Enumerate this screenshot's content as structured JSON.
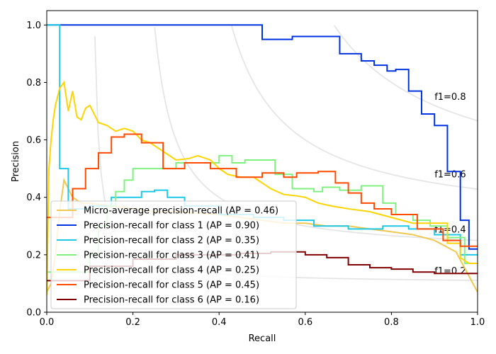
{
  "chart_data": {
    "type": "line",
    "title": "",
    "xlabel": "Recall",
    "ylabel": "Precision",
    "xlim": [
      0.0,
      1.0
    ],
    "ylim": [
      0.0,
      1.05
    ],
    "xticks": [
      "0.0",
      "0.2",
      "0.4",
      "0.6",
      "0.8",
      "1.0"
    ],
    "yticks": [
      "0.0",
      "0.2",
      "0.4",
      "0.6",
      "0.8",
      "1.0"
    ],
    "grid": false,
    "legend_position": "lower-left",
    "iso_f1": [
      {
        "f1": 0.2,
        "label": "f1=0.2"
      },
      {
        "f1": 0.4,
        "label": "f1=0.4"
      },
      {
        "f1": 0.6,
        "label": "f1=0.6"
      },
      {
        "f1": 0.8,
        "label": "f1=0.8"
      }
    ],
    "series": [
      {
        "name": "Micro-average precision-recall (AP = 0.46)",
        "color": "#f0c850",
        "points": [
          [
            0.0,
            0.07
          ],
          [
            0.01,
            0.1
          ],
          [
            0.02,
            0.2
          ],
          [
            0.03,
            0.35
          ],
          [
            0.04,
            0.46
          ],
          [
            0.06,
            0.4
          ],
          [
            0.08,
            0.38
          ],
          [
            0.1,
            0.38
          ],
          [
            0.15,
            0.37
          ],
          [
            0.2,
            0.36
          ],
          [
            0.25,
            0.35
          ],
          [
            0.3,
            0.35
          ],
          [
            0.35,
            0.345
          ],
          [
            0.4,
            0.34
          ],
          [
            0.45,
            0.33
          ],
          [
            0.5,
            0.32
          ],
          [
            0.55,
            0.31
          ],
          [
            0.6,
            0.31
          ],
          [
            0.65,
            0.3
          ],
          [
            0.7,
            0.3
          ],
          [
            0.75,
            0.29
          ],
          [
            0.8,
            0.28
          ],
          [
            0.85,
            0.27
          ],
          [
            0.9,
            0.25
          ],
          [
            0.95,
            0.21
          ],
          [
            1.0,
            0.07
          ]
        ]
      },
      {
        "name": "Precision-recall for class 1 (AP = 0.90)",
        "color": "#0033e0",
        "points": [
          [
            0.0,
            1.0
          ],
          [
            0.5,
            1.0
          ],
          [
            0.5,
            0.95
          ],
          [
            0.57,
            0.95
          ],
          [
            0.57,
            0.96
          ],
          [
            0.68,
            0.96
          ],
          [
            0.68,
            0.9
          ],
          [
            0.73,
            0.9
          ],
          [
            0.73,
            0.875
          ],
          [
            0.76,
            0.875
          ],
          [
            0.76,
            0.86
          ],
          [
            0.79,
            0.86
          ],
          [
            0.79,
            0.84
          ],
          [
            0.81,
            0.84
          ],
          [
            0.81,
            0.845
          ],
          [
            0.84,
            0.845
          ],
          [
            0.84,
            0.77
          ],
          [
            0.87,
            0.77
          ],
          [
            0.87,
            0.69
          ],
          [
            0.9,
            0.69
          ],
          [
            0.9,
            0.65
          ],
          [
            0.93,
            0.65
          ],
          [
            0.93,
            0.49
          ],
          [
            0.96,
            0.49
          ],
          [
            0.96,
            0.32
          ],
          [
            0.98,
            0.32
          ],
          [
            0.98,
            0.22
          ],
          [
            1.0,
            0.22
          ]
        ]
      },
      {
        "name": "Precision-recall for class 2 (AP = 0.35)",
        "color": "#1ec8e6",
        "points": [
          [
            0.0,
            1.0
          ],
          [
            0.03,
            1.0
          ],
          [
            0.03,
            0.5
          ],
          [
            0.05,
            0.5
          ],
          [
            0.05,
            0.36
          ],
          [
            0.1,
            0.36
          ],
          [
            0.1,
            0.37
          ],
          [
            0.15,
            0.37
          ],
          [
            0.15,
            0.4
          ],
          [
            0.22,
            0.4
          ],
          [
            0.22,
            0.42
          ],
          [
            0.25,
            0.42
          ],
          [
            0.25,
            0.425
          ],
          [
            0.28,
            0.425
          ],
          [
            0.28,
            0.4
          ],
          [
            0.32,
            0.4
          ],
          [
            0.32,
            0.37
          ],
          [
            0.4,
            0.37
          ],
          [
            0.4,
            0.34
          ],
          [
            0.48,
            0.34
          ],
          [
            0.48,
            0.33
          ],
          [
            0.55,
            0.33
          ],
          [
            0.55,
            0.32
          ],
          [
            0.62,
            0.32
          ],
          [
            0.62,
            0.3
          ],
          [
            0.7,
            0.3
          ],
          [
            0.7,
            0.29
          ],
          [
            0.78,
            0.29
          ],
          [
            0.78,
            0.3
          ],
          [
            0.84,
            0.3
          ],
          [
            0.84,
            0.29
          ],
          [
            0.9,
            0.29
          ],
          [
            0.9,
            0.27
          ],
          [
            0.96,
            0.27
          ],
          [
            0.96,
            0.2
          ],
          [
            1.0,
            0.2
          ]
        ]
      },
      {
        "name": "Precision-recall for class 3 (AP = 0.41)",
        "color": "#80f080",
        "points": [
          [
            0.0,
            0.14
          ],
          [
            0.1,
            0.14
          ],
          [
            0.1,
            0.2
          ],
          [
            0.12,
            0.2
          ],
          [
            0.12,
            0.3
          ],
          [
            0.14,
            0.3
          ],
          [
            0.14,
            0.37
          ],
          [
            0.16,
            0.37
          ],
          [
            0.16,
            0.42
          ],
          [
            0.18,
            0.42
          ],
          [
            0.18,
            0.46
          ],
          [
            0.2,
            0.46
          ],
          [
            0.2,
            0.5
          ],
          [
            0.3,
            0.5
          ],
          [
            0.3,
            0.52
          ],
          [
            0.4,
            0.52
          ],
          [
            0.4,
            0.545
          ],
          [
            0.43,
            0.545
          ],
          [
            0.43,
            0.52
          ],
          [
            0.46,
            0.52
          ],
          [
            0.46,
            0.53
          ],
          [
            0.53,
            0.53
          ],
          [
            0.53,
            0.48
          ],
          [
            0.57,
            0.48
          ],
          [
            0.57,
            0.43
          ],
          [
            0.62,
            0.43
          ],
          [
            0.62,
            0.42
          ],
          [
            0.64,
            0.42
          ],
          [
            0.64,
            0.435
          ],
          [
            0.68,
            0.435
          ],
          [
            0.68,
            0.425
          ],
          [
            0.73,
            0.425
          ],
          [
            0.73,
            0.44
          ],
          [
            0.78,
            0.44
          ],
          [
            0.78,
            0.38
          ],
          [
            0.81,
            0.38
          ],
          [
            0.81,
            0.34
          ],
          [
            0.85,
            0.34
          ],
          [
            0.85,
            0.32
          ],
          [
            0.89,
            0.32
          ],
          [
            0.89,
            0.3
          ],
          [
            0.93,
            0.3
          ],
          [
            0.93,
            0.26
          ],
          [
            0.97,
            0.26
          ],
          [
            0.97,
            0.17
          ],
          [
            1.0,
            0.17
          ]
        ]
      },
      {
        "name": "Precision-recall for class 4 (AP = 0.25)",
        "color": "#ffd400",
        "points": [
          [
            0.0,
            0.06
          ],
          [
            0.005,
            0.5
          ],
          [
            0.01,
            0.6
          ],
          [
            0.015,
            0.67
          ],
          [
            0.02,
            0.72
          ],
          [
            0.03,
            0.78
          ],
          [
            0.04,
            0.8
          ],
          [
            0.05,
            0.7
          ],
          [
            0.06,
            0.77
          ],
          [
            0.07,
            0.68
          ],
          [
            0.08,
            0.67
          ],
          [
            0.09,
            0.71
          ],
          [
            0.1,
            0.72
          ],
          [
            0.12,
            0.66
          ],
          [
            0.14,
            0.65
          ],
          [
            0.16,
            0.63
          ],
          [
            0.18,
            0.64
          ],
          [
            0.2,
            0.63
          ],
          [
            0.22,
            0.6
          ],
          [
            0.24,
            0.59
          ],
          [
            0.26,
            0.57
          ],
          [
            0.28,
            0.55
          ],
          [
            0.3,
            0.53
          ],
          [
            0.33,
            0.535
          ],
          [
            0.35,
            0.545
          ],
          [
            0.38,
            0.53
          ],
          [
            0.4,
            0.5
          ],
          [
            0.42,
            0.48
          ],
          [
            0.45,
            0.47
          ],
          [
            0.48,
            0.47
          ],
          [
            0.5,
            0.45
          ],
          [
            0.52,
            0.43
          ],
          [
            0.55,
            0.41
          ],
          [
            0.58,
            0.405
          ],
          [
            0.6,
            0.4
          ],
          [
            0.63,
            0.38
          ],
          [
            0.66,
            0.37
          ],
          [
            0.7,
            0.36
          ],
          [
            0.75,
            0.35
          ],
          [
            0.8,
            0.33
          ],
          [
            0.85,
            0.31
          ],
          [
            0.9,
            0.31
          ],
          [
            0.93,
            0.31
          ],
          [
            0.93,
            0.24
          ],
          [
            0.96,
            0.24
          ],
          [
            0.96,
            0.19
          ],
          [
            0.98,
            0.17
          ],
          [
            1.0,
            0.17
          ]
        ]
      },
      {
        "name": "Precision-recall for class 5 (AP = 0.45)",
        "color": "#ff4a00",
        "points": [
          [
            0.0,
            0.33
          ],
          [
            0.06,
            0.33
          ],
          [
            0.06,
            0.43
          ],
          [
            0.09,
            0.43
          ],
          [
            0.09,
            0.5
          ],
          [
            0.12,
            0.5
          ],
          [
            0.12,
            0.555
          ],
          [
            0.15,
            0.555
          ],
          [
            0.15,
            0.61
          ],
          [
            0.18,
            0.61
          ],
          [
            0.18,
            0.62
          ],
          [
            0.22,
            0.62
          ],
          [
            0.22,
            0.59
          ],
          [
            0.27,
            0.59
          ],
          [
            0.27,
            0.5
          ],
          [
            0.32,
            0.5
          ],
          [
            0.32,
            0.52
          ],
          [
            0.38,
            0.52
          ],
          [
            0.38,
            0.5
          ],
          [
            0.44,
            0.5
          ],
          [
            0.44,
            0.47
          ],
          [
            0.5,
            0.47
          ],
          [
            0.5,
            0.485
          ],
          [
            0.55,
            0.485
          ],
          [
            0.55,
            0.47
          ],
          [
            0.58,
            0.47
          ],
          [
            0.58,
            0.485
          ],
          [
            0.63,
            0.485
          ],
          [
            0.63,
            0.49
          ],
          [
            0.67,
            0.49
          ],
          [
            0.67,
            0.45
          ],
          [
            0.7,
            0.45
          ],
          [
            0.7,
            0.415
          ],
          [
            0.73,
            0.415
          ],
          [
            0.73,
            0.38
          ],
          [
            0.76,
            0.38
          ],
          [
            0.76,
            0.36
          ],
          [
            0.8,
            0.36
          ],
          [
            0.8,
            0.34
          ],
          [
            0.86,
            0.34
          ],
          [
            0.86,
            0.29
          ],
          [
            0.92,
            0.29
          ],
          [
            0.92,
            0.25
          ],
          [
            0.96,
            0.25
          ],
          [
            0.96,
            0.23
          ],
          [
            1.0,
            0.23
          ]
        ]
      },
      {
        "name": "Precision-recall for class 6 (AP = 0.16)",
        "color": "#800000",
        "points": [
          [
            0.0,
            0.11
          ],
          [
            0.1,
            0.11
          ],
          [
            0.1,
            0.16
          ],
          [
            0.2,
            0.16
          ],
          [
            0.2,
            0.185
          ],
          [
            0.3,
            0.185
          ],
          [
            0.3,
            0.2
          ],
          [
            0.45,
            0.2
          ],
          [
            0.45,
            0.205
          ],
          [
            0.52,
            0.205
          ],
          [
            0.52,
            0.21
          ],
          [
            0.6,
            0.21
          ],
          [
            0.6,
            0.2
          ],
          [
            0.65,
            0.2
          ],
          [
            0.65,
            0.19
          ],
          [
            0.7,
            0.19
          ],
          [
            0.7,
            0.165
          ],
          [
            0.75,
            0.165
          ],
          [
            0.75,
            0.155
          ],
          [
            0.8,
            0.155
          ],
          [
            0.8,
            0.15
          ],
          [
            0.85,
            0.15
          ],
          [
            0.85,
            0.14
          ],
          [
            0.9,
            0.14
          ],
          [
            0.9,
            0.135
          ],
          [
            1.0,
            0.135
          ]
        ]
      }
    ]
  }
}
